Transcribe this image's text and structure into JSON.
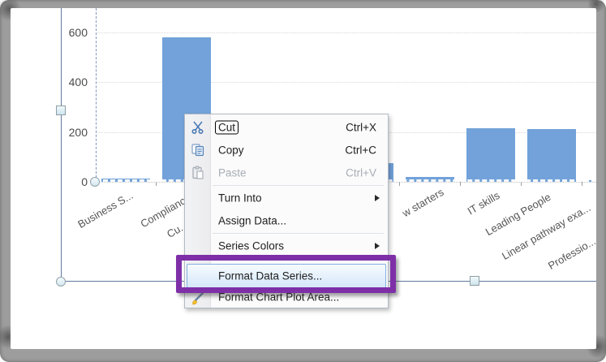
{
  "chart_data": {
    "type": "bar",
    "title": "",
    "xlabel": "",
    "ylabel": "",
    "categories": [
      "Business S...",
      "Compliance",
      "Cu...",
      null,
      null,
      "w starters",
      "IT skills",
      "Leading People",
      "Linear pathway exa...",
      "Professio..."
    ],
    "values": [
      13,
      580,
      null,
      null,
      75,
      20,
      215,
      212,
      8,
      null
    ],
    "ylim": [
      0,
      600
    ],
    "yticks": [
      0,
      200,
      400,
      600
    ],
    "grid": "horizontal dotted",
    "legend": "none",
    "bar_color": "#72a2d9",
    "occlusion_note": "some bars and category labels are hidden behind the context menu and the right edge of the frame"
  },
  "selection": {
    "state": "chart object selected",
    "handles": [
      "left-mid-square",
      "bottom-mid-square",
      "bottom-left-circle",
      "plot-origin-circle"
    ]
  },
  "context_menu": {
    "items": [
      {
        "label": "Cut",
        "shortcut": "Ctrl+X",
        "icon": "scissors-icon",
        "focused": true
      },
      {
        "label": "Copy",
        "shortcut": "Ctrl+C",
        "icon": "copy-icon"
      },
      {
        "label": "Paste",
        "shortcut": "Ctrl+V",
        "icon": "paste-icon",
        "disabled": true
      },
      {
        "separator": true
      },
      {
        "label": "Turn Into",
        "submenu": true
      },
      {
        "label": "Assign Data..."
      },
      {
        "separator": true
      },
      {
        "label": "Series Colors",
        "submenu": true
      },
      {
        "label": "Format Data Series...",
        "highlighted": true
      },
      {
        "label": "Format Chart Plot Area...",
        "icon": "format-plot-area-icon"
      }
    ]
  },
  "annotation": {
    "shape": "rectangle-outline",
    "color": "#7e2fa8",
    "around": "Format Data Series..."
  },
  "colors": {
    "bar": "#72a2d9",
    "annotation_purple": "#7e2fa8",
    "selection_line": "#62789f",
    "menu_highlight_border": "#84aede",
    "frame_gray": "#9d9d9d"
  }
}
